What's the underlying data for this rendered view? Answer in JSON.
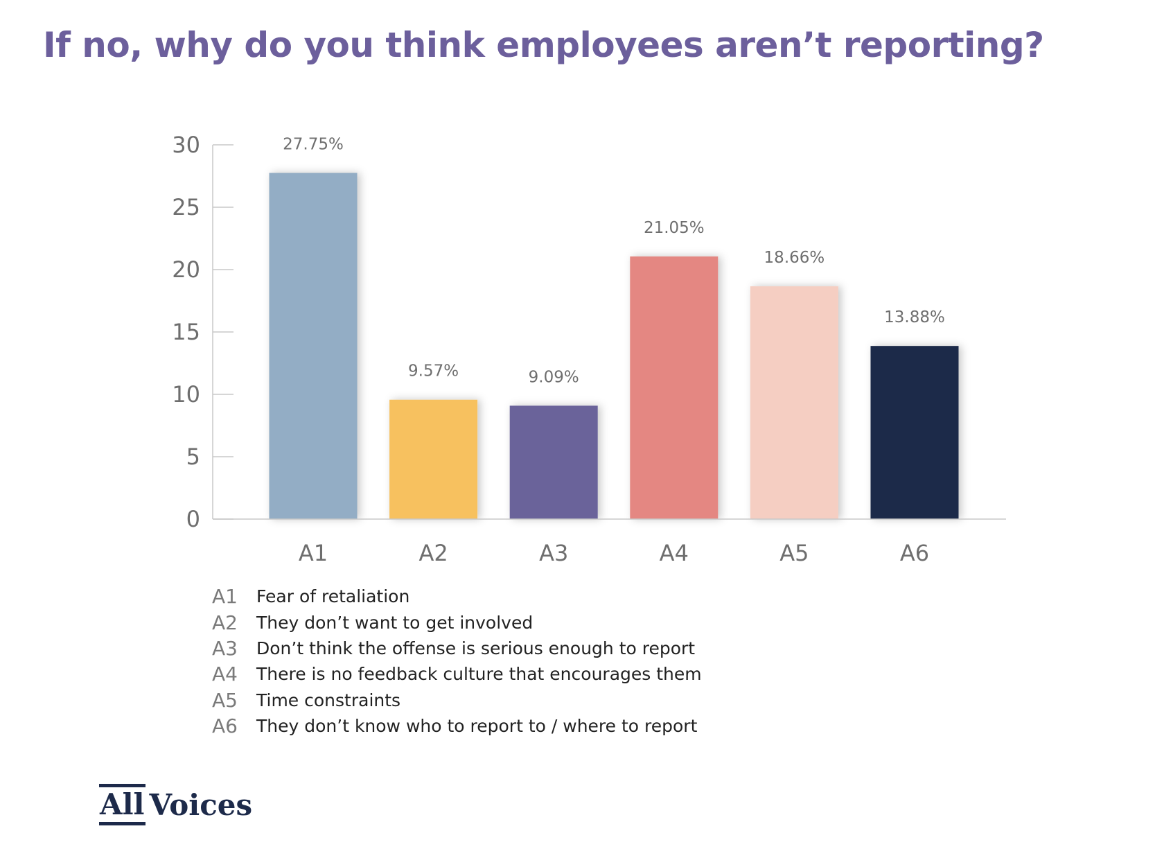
{
  "chart_data": {
    "type": "bar",
    "title": "If no, why do you think employees aren’t reporting?",
    "categories": [
      "A1",
      "A2",
      "A3",
      "A4",
      "A5",
      "A6"
    ],
    "values": [
      27.75,
      9.57,
      9.09,
      21.05,
      18.66,
      13.88
    ],
    "value_labels": [
      "27.75%",
      "9.57%",
      "9.09%",
      "21.05%",
      "18.66%",
      "13.88%"
    ],
    "colors": [
      "#93adc5",
      "#f7c15e",
      "#6a649a",
      "#e48782",
      "#f5cec2",
      "#1c2a4a"
    ],
    "ylim": [
      0,
      30
    ],
    "yticks": [
      "0",
      "5",
      "10",
      "15",
      "20",
      "25",
      "30"
    ],
    "xlabel": "",
    "ylabel": "",
    "grid": false,
    "legend_position": "bottom-left"
  },
  "legend": [
    {
      "code": "A1",
      "label": "Fear of retaliation"
    },
    {
      "code": "A2",
      "label": "They don’t want to get involved"
    },
    {
      "code": "A3",
      "label": "Don’t think the offense is serious enough to report"
    },
    {
      "code": "A4",
      "label": "There is no feedback culture that encourages them"
    },
    {
      "code": "A5",
      "label": "Time constraints"
    },
    {
      "code": "A6",
      "label": "They don’t know who to report to / where to report"
    }
  ],
  "logo": {
    "part1": "All",
    "part2": "Voices"
  }
}
